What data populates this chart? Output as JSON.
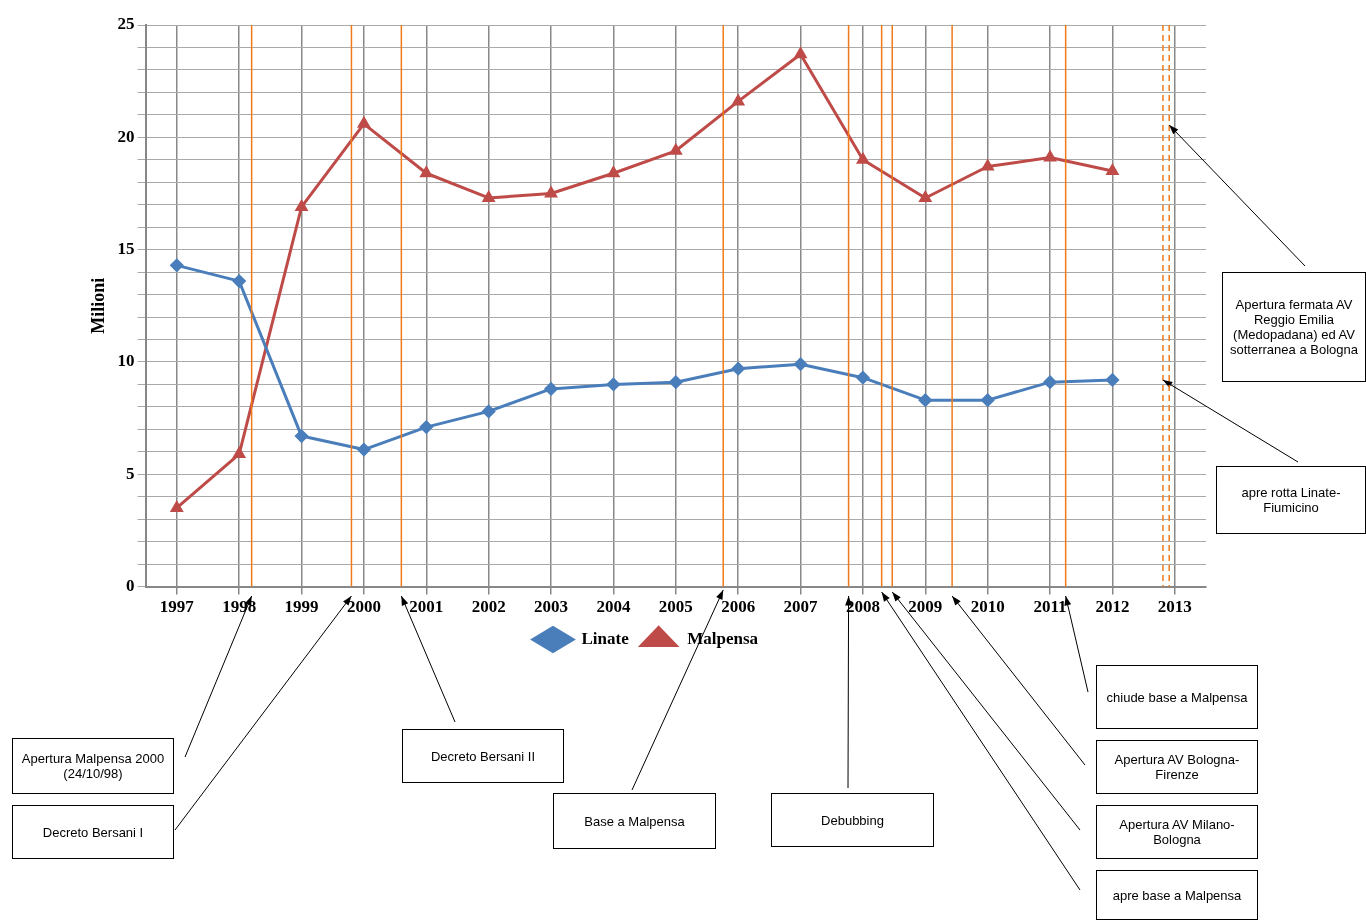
{
  "chart_data": {
    "type": "line",
    "ylabel": "Milioni",
    "x": [
      1997,
      1998,
      1999,
      2000,
      2001,
      2002,
      2003,
      2004,
      2005,
      2006,
      2007,
      2008,
      2009,
      2010,
      2011,
      2012
    ],
    "series": [
      {
        "name": "Linate",
        "color": "#4a7ebb",
        "marker": "diamond",
        "values": [
          14.3,
          13.6,
          6.7,
          6.1,
          7.1,
          7.8,
          8.8,
          9.0,
          9.1,
          9.7,
          9.9,
          9.3,
          8.3,
          8.3,
          9.1,
          9.2
        ]
      },
      {
        "name": "Malpensa",
        "color": "#be4b48",
        "marker": "triangle",
        "values": [
          3.5,
          5.9,
          16.9,
          20.6,
          18.4,
          17.3,
          17.5,
          18.4,
          19.4,
          21.6,
          23.7,
          19.0,
          17.3,
          18.7,
          19.1,
          18.5
        ]
      }
    ],
    "xlim": [
      1996.5,
      2013.5
    ],
    "xticks": [
      1997,
      1998,
      1999,
      2000,
      2001,
      2002,
      2003,
      2004,
      2005,
      2006,
      2007,
      2008,
      2009,
      2010,
      2011,
      2012,
      2013
    ],
    "ylim": [
      0,
      25
    ],
    "yticks": [
      0,
      {
        "value": 1,
        "label": null
      },
      {
        "value": 2,
        "label": null
      },
      {
        "value": 3,
        "label": null
      },
      {
        "value": 4,
        "label": null
      },
      5,
      {
        "value": 6,
        "label": null
      },
      {
        "value": 7,
        "label": null
      },
      {
        "value": 8,
        "label": null
      },
      {
        "value": 9,
        "label": null
      },
      10,
      {
        "value": 11,
        "label": null
      },
      {
        "value": 12,
        "label": null
      },
      {
        "value": 13,
        "label": null
      },
      {
        "value": 14,
        "label": null
      },
      15,
      {
        "value": 16,
        "label": null
      },
      {
        "value": 17,
        "label": null
      },
      {
        "value": 18,
        "label": null
      },
      {
        "value": 19,
        "label": null
      },
      20,
      {
        "value": 21,
        "label": null
      },
      {
        "value": 22,
        "label": null
      },
      {
        "value": 23,
        "label": null
      },
      {
        "value": 24,
        "label": null
      },
      25
    ],
    "grid": true,
    "legend": "bottom",
    "line_style": "solid",
    "ref_lines": [
      {
        "axis": "x",
        "value": 1998.2,
        "color": "#f07a1a"
      },
      {
        "axis": "x",
        "value": 1999.8,
        "color": "#f07a1a"
      },
      {
        "axis": "x",
        "value": 2000.6,
        "color": "#f07a1a"
      },
      {
        "axis": "x",
        "value": 2005.76,
        "color": "#f07a1a"
      },
      {
        "axis": "x",
        "value": 2007.77,
        "color": "#f07a1a"
      },
      {
        "axis": "x",
        "value": 2008.3,
        "color": "#f07a1a"
      },
      {
        "axis": "x",
        "value": 2008.47,
        "color": "#f07a1a"
      },
      {
        "axis": "x",
        "value": 2009.43,
        "color": "#f07a1a"
      },
      {
        "axis": "x",
        "value": 2011.25,
        "color": "#f07a1a"
      },
      {
        "axis": "x",
        "value": 2012.81,
        "color": "#f07a1a",
        "line_style": "dashed"
      },
      {
        "axis": "x",
        "value": 2012.91,
        "color": "#f07a1a",
        "line_style": "dashed"
      }
    ],
    "annotations": [
      "Apertura Malpensa 2000 (24/10/98)",
      "Decreto Bersani I",
      "Decreto Bersani II",
      "Base a Malpensa",
      "Debubbing",
      "apre base a Malpensa",
      "Apertura AV Milano-Bologna",
      "Apertura AV Bologna-Firenze",
      "chiude base a Malpensa",
      "apre rotta Linate-Fiumicino",
      "Apertura fermata AV Reggio Emilia (Medopadana) ed AV sotterranea a Bologna"
    ]
  }
}
